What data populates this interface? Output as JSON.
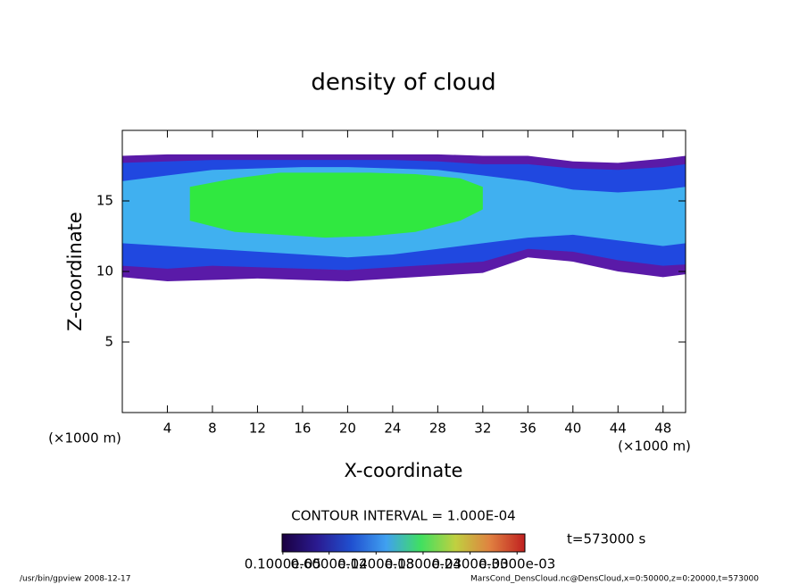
{
  "chart_data": {
    "type": "contour",
    "title": "density of cloud",
    "x_label": "X-coordinate",
    "y_label": "Z-coordinate",
    "x_unit": "(×1000 m)",
    "y_unit": "(×1000 m)",
    "xlim": [
      0,
      50
    ],
    "ylim": [
      0,
      20
    ],
    "xticks": [
      4,
      8,
      12,
      16,
      20,
      24,
      28,
      32,
      36,
      40,
      44,
      48
    ],
    "yticks": [
      5,
      10,
      15
    ],
    "regions": [
      {
        "color": "#5a1aa8",
        "x": [
          0,
          4,
          8,
          12,
          16,
          20,
          24,
          28,
          32,
          36,
          40,
          44,
          48,
          50
        ],
        "lower": [
          9.6,
          9.3,
          9.4,
          9.5,
          9.4,
          9.3,
          9.5,
          9.7,
          9.9,
          11.0,
          10.7,
          10.0,
          9.6,
          9.8
        ],
        "upper": [
          18.2,
          18.3,
          18.3,
          18.3,
          18.3,
          18.3,
          18.3,
          18.3,
          18.2,
          18.2,
          17.8,
          17.7,
          18.0,
          18.2
        ]
      },
      {
        "color": "#2048e0",
        "x": [
          0,
          4,
          8,
          12,
          16,
          20,
          24,
          28,
          32,
          36,
          40,
          44,
          48,
          50
        ],
        "lower": [
          10.4,
          10.2,
          10.4,
          10.3,
          10.2,
          10.1,
          10.3,
          10.5,
          10.7,
          11.6,
          11.4,
          10.8,
          10.4,
          10.5
        ],
        "upper": [
          17.7,
          17.8,
          17.9,
          17.9,
          17.9,
          17.9,
          17.9,
          17.8,
          17.6,
          17.6,
          17.3,
          17.2,
          17.4,
          17.6
        ]
      },
      {
        "color": "#40b0f0",
        "x": [
          0,
          4,
          8,
          12,
          16,
          20,
          24,
          28,
          32,
          36,
          40,
          44,
          48,
          50
        ],
        "lower": [
          12.0,
          11.8,
          11.6,
          11.4,
          11.2,
          11.0,
          11.2,
          11.6,
          12.0,
          12.4,
          12.6,
          12.2,
          11.8,
          12.0
        ],
        "upper": [
          16.4,
          16.8,
          17.2,
          17.3,
          17.4,
          17.4,
          17.3,
          17.2,
          16.8,
          16.4,
          15.8,
          15.6,
          15.8,
          16.0
        ]
      },
      {
        "color": "#30e840",
        "x": [
          6,
          10,
          14,
          18,
          22,
          26,
          30,
          32
        ],
        "lower": [
          13.6,
          12.8,
          12.6,
          12.4,
          12.5,
          12.8,
          13.6,
          14.4
        ],
        "upper": [
          16.0,
          16.6,
          17.0,
          17.0,
          17.0,
          16.9,
          16.6,
          16.0
        ]
      }
    ],
    "contour_interval_label": "CONTOUR INTERVAL = 1.000E-04",
    "time_label": "t=573000 s",
    "clim": [
      0,
      0.00031
    ],
    "colorbar_colors": [
      "#1a0040",
      "#2a1a90",
      "#2050d0",
      "#40a0f0",
      "#40e060",
      "#c0d040",
      "#e08040",
      "#c02020"
    ],
    "colorbar_ticks": [
      {
        "value": 1e-06,
        "label": "0.1000e-05"
      },
      {
        "value": 6e-05,
        "label": "0.6000e-04"
      },
      {
        "value": 0.00012,
        "label": "0.1200e-03"
      },
      {
        "value": 0.00018,
        "label": "0.1800e-03"
      },
      {
        "value": 0.00024,
        "label": "0.2400e-03"
      },
      {
        "value": 0.0003,
        "label": "0.3000e-03"
      }
    ],
    "footer_left": "/usr/bin/gpview  2008-12-17",
    "footer_right": "MarsCond_DensCloud.nc@DensCloud,x=0:50000,z=0:20000,t=573000"
  }
}
